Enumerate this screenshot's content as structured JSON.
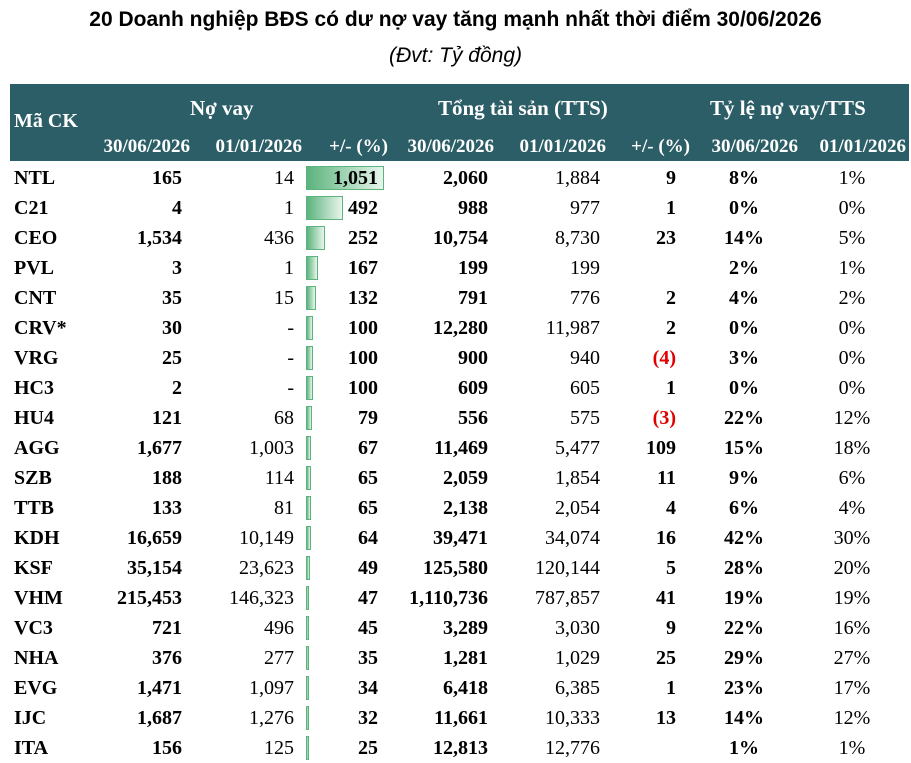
{
  "title": "20 Doanh nghiệp BĐS có dư nợ vay tăng mạnh nhất thời điểm 30/06/2026",
  "subtitle": "(Đvt: Tỷ đồng)",
  "header": {
    "ma_ck": "Mã CK",
    "no_vay": "Nợ vay",
    "tong_tai_san": "Tổng tài sản (TTS)",
    "ty_le": "Tỷ lệ nợ vay/TTS",
    "d1": "30/06/2026",
    "d2": "01/01/2026",
    "pct": "+/- (%)"
  },
  "colors": {
    "header_bg": "#2c5e67",
    "bar": "#5bb37d",
    "negative": "#e00000"
  },
  "chart_data": {
    "type": "table",
    "columns": [
      "Mã CK",
      "Nợ vay 30/06/2026",
      "Nợ vay 01/01/2026",
      "Nợ vay +/- (%)",
      "TTS 30/06/2026",
      "TTS 01/01/2026",
      "TTS +/- (%)",
      "Tỷ lệ 30/06/2026",
      "Tỷ lệ 01/01/2026"
    ],
    "bar_max": 1051,
    "rows": [
      {
        "code": "NTL",
        "nv1": "165",
        "nv2": "14",
        "nvp": "1,051",
        "nvp_value": 1051,
        "t1": "2,060",
        "t2": "1,884",
        "tp": "9",
        "tp_neg": false,
        "r1": "8%",
        "r2": "1%"
      },
      {
        "code": "C21",
        "nv1": "4",
        "nv2": "1",
        "nvp": "492",
        "nvp_value": 492,
        "t1": "988",
        "t2": "977",
        "tp": "1",
        "tp_neg": false,
        "r1": "0%",
        "r2": "0%"
      },
      {
        "code": "CEO",
        "nv1": "1,534",
        "nv2": "436",
        "nvp": "252",
        "nvp_value": 252,
        "t1": "10,754",
        "t2": "8,730",
        "tp": "23",
        "tp_neg": false,
        "r1": "14%",
        "r2": "5%"
      },
      {
        "code": "PVL",
        "nv1": "3",
        "nv2": "1",
        "nvp": "167",
        "nvp_value": 167,
        "t1": "199",
        "t2": "199",
        "tp": "",
        "tp_neg": false,
        "r1": "2%",
        "r2": "1%"
      },
      {
        "code": "CNT",
        "nv1": "35",
        "nv2": "15",
        "nvp": "132",
        "nvp_value": 132,
        "t1": "791",
        "t2": "776",
        "tp": "2",
        "tp_neg": false,
        "r1": "4%",
        "r2": "2%"
      },
      {
        "code": "CRV*",
        "nv1": "30",
        "nv2": "-",
        "nvp": "100",
        "nvp_value": 100,
        "t1": "12,280",
        "t2": "11,987",
        "tp": "2",
        "tp_neg": false,
        "r1": "0%",
        "r2": "0%"
      },
      {
        "code": "VRG",
        "nv1": "25",
        "nv2": "-",
        "nvp": "100",
        "nvp_value": 100,
        "t1": "900",
        "t2": "940",
        "tp": "(4)",
        "tp_neg": true,
        "r1": "3%",
        "r2": "0%"
      },
      {
        "code": "HC3",
        "nv1": "2",
        "nv2": "-",
        "nvp": "100",
        "nvp_value": 100,
        "t1": "609",
        "t2": "605",
        "tp": "1",
        "tp_neg": false,
        "r1": "0%",
        "r2": "0%"
      },
      {
        "code": "HU4",
        "nv1": "121",
        "nv2": "68",
        "nvp": "79",
        "nvp_value": 79,
        "t1": "556",
        "t2": "575",
        "tp": "(3)",
        "tp_neg": true,
        "r1": "22%",
        "r2": "12%"
      },
      {
        "code": "AGG",
        "nv1": "1,677",
        "nv2": "1,003",
        "nvp": "67",
        "nvp_value": 67,
        "t1": "11,469",
        "t2": "5,477",
        "tp": "109",
        "tp_neg": false,
        "r1": "15%",
        "r2": "18%"
      },
      {
        "code": "SZB",
        "nv1": "188",
        "nv2": "114",
        "nvp": "65",
        "nvp_value": 65,
        "t1": "2,059",
        "t2": "1,854",
        "tp": "11",
        "tp_neg": false,
        "r1": "9%",
        "r2": "6%"
      },
      {
        "code": "TTB",
        "nv1": "133",
        "nv2": "81",
        "nvp": "65",
        "nvp_value": 65,
        "t1": "2,138",
        "t2": "2,054",
        "tp": "4",
        "tp_neg": false,
        "r1": "6%",
        "r2": "4%"
      },
      {
        "code": "KDH",
        "nv1": "16,659",
        "nv2": "10,149",
        "nvp": "64",
        "nvp_value": 64,
        "t1": "39,471",
        "t2": "34,074",
        "tp": "16",
        "tp_neg": false,
        "r1": "42%",
        "r2": "30%"
      },
      {
        "code": "KSF",
        "nv1": "35,154",
        "nv2": "23,623",
        "nvp": "49",
        "nvp_value": 49,
        "t1": "125,580",
        "t2": "120,144",
        "tp": "5",
        "tp_neg": false,
        "r1": "28%",
        "r2": "20%"
      },
      {
        "code": "VHM",
        "nv1": "215,453",
        "nv2": "146,323",
        "nvp": "47",
        "nvp_value": 47,
        "t1": "1,110,736",
        "t2": "787,857",
        "tp": "41",
        "tp_neg": false,
        "r1": "19%",
        "r2": "19%"
      },
      {
        "code": "VC3",
        "nv1": "721",
        "nv2": "496",
        "nvp": "45",
        "nvp_value": 45,
        "t1": "3,289",
        "t2": "3,030",
        "tp": "9",
        "tp_neg": false,
        "r1": "22%",
        "r2": "16%"
      },
      {
        "code": "NHA",
        "nv1": "376",
        "nv2": "277",
        "nvp": "35",
        "nvp_value": 35,
        "t1": "1,281",
        "t2": "1,029",
        "tp": "25",
        "tp_neg": false,
        "r1": "29%",
        "r2": "27%"
      },
      {
        "code": "EVG",
        "nv1": "1,471",
        "nv2": "1,097",
        "nvp": "34",
        "nvp_value": 34,
        "t1": "6,418",
        "t2": "6,385",
        "tp": "1",
        "tp_neg": false,
        "r1": "23%",
        "r2": "17%"
      },
      {
        "code": "IJC",
        "nv1": "1,687",
        "nv2": "1,276",
        "nvp": "32",
        "nvp_value": 32,
        "t1": "11,661",
        "t2": "10,333",
        "tp": "13",
        "tp_neg": false,
        "r1": "14%",
        "r2": "12%"
      },
      {
        "code": "ITA",
        "nv1": "156",
        "nv2": "125",
        "nvp": "25",
        "nvp_value": 25,
        "t1": "12,813",
        "t2": "12,776",
        "tp": "",
        "tp_neg": false,
        "r1": "1%",
        "r2": "1%"
      }
    ]
  }
}
